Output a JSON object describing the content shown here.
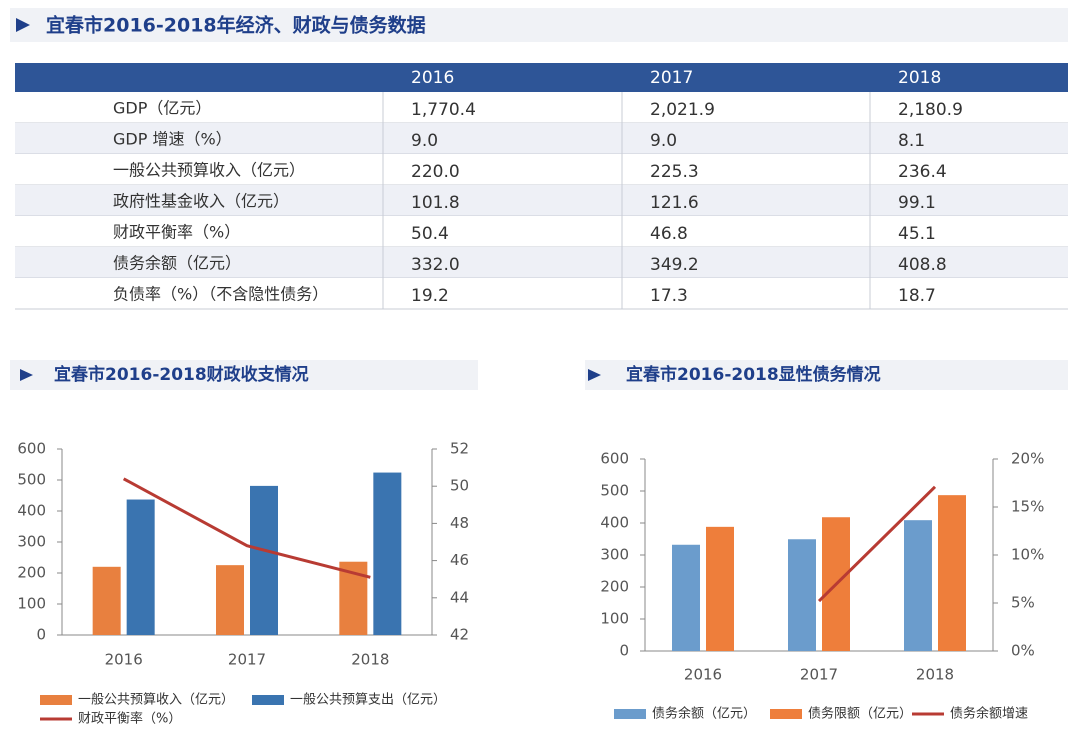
{
  "section_title": "宜春市2016-2018年经济、财政与债务数据",
  "table": {
    "columns": [
      "2016",
      "2017",
      "2018"
    ],
    "rows": [
      {
        "label": "GDP（亿元）",
        "values": [
          "1,770.4",
          "2,021.9",
          "2,180.9"
        ]
      },
      {
        "label": "GDP 增速（%）",
        "values": [
          "9.0",
          "9.0",
          "8.1"
        ]
      },
      {
        "label": "一般公共预算收入（亿元）",
        "values": [
          "220.0",
          "225.3",
          "236.4"
        ]
      },
      {
        "label": "政府性基金收入（亿元）",
        "values": [
          "101.8",
          "121.6",
          "99.1"
        ]
      },
      {
        "label": "财政平衡率（%）",
        "values": [
          "50.4",
          "46.8",
          "45.1"
        ]
      },
      {
        "label": "债务余额（亿元）",
        "values": [
          "332.0",
          "349.2",
          "408.8"
        ]
      },
      {
        "label": "负债率（%）（不含隐性债务）",
        "values": [
          "19.2",
          "17.3",
          "18.7"
        ]
      }
    ]
  },
  "chart_data": [
    {
      "type": "combo",
      "title": "宜春市2016-2018财政收支情况",
      "categories": [
        "2016",
        "2017",
        "2018"
      ],
      "ylim": [
        0,
        600
      ],
      "yticks": [
        0,
        100,
        200,
        300,
        400,
        500,
        600
      ],
      "y2lim": [
        42,
        52
      ],
      "y2ticks": [
        42,
        44,
        46,
        48,
        50,
        52
      ],
      "series": [
        {
          "name": "一般公共预算收入（亿元）",
          "type": "bar",
          "color": "#e8803f",
          "values": [
            220.0,
            225.3,
            236.4
          ]
        },
        {
          "name": "一般公共预算支出（亿元）",
          "type": "bar",
          "color": "#3a74b0",
          "values": [
            437,
            481,
            524
          ]
        },
        {
          "name": "财政平衡率（%）",
          "type": "line",
          "color": "#b83b33",
          "axis": "y2",
          "values": [
            50.4,
            46.8,
            45.1
          ]
        }
      ]
    },
    {
      "type": "combo",
      "title": "宜春市2016-2018显性债务情况",
      "categories": [
        "2016",
        "2017",
        "2018"
      ],
      "ylim": [
        0,
        600
      ],
      "yticks": [
        0,
        100,
        200,
        300,
        400,
        500,
        600
      ],
      "y2lim": [
        0,
        20
      ],
      "y2ticks": [
        {
          "value": 0,
          "label": "0%"
        },
        {
          "value": 5,
          "label": "5%"
        },
        {
          "value": 10,
          "label": "10%"
        },
        {
          "value": 15,
          "label": "15%"
        },
        {
          "value": 20,
          "label": "20%"
        }
      ],
      "series": [
        {
          "name": "债务余额（亿元）",
          "type": "bar",
          "color": "#6b9ccc",
          "values": [
            332.0,
            349.2,
            408.8
          ]
        },
        {
          "name": "债务限额（亿元）",
          "type": "bar",
          "color": "#ee7e3b",
          "values": [
            388,
            418,
            487
          ]
        },
        {
          "name": "债务余额增速",
          "type": "line",
          "color": "#b83b33",
          "axis": "y2",
          "values": [
            null,
            5.2,
            17.1
          ]
        }
      ]
    }
  ]
}
